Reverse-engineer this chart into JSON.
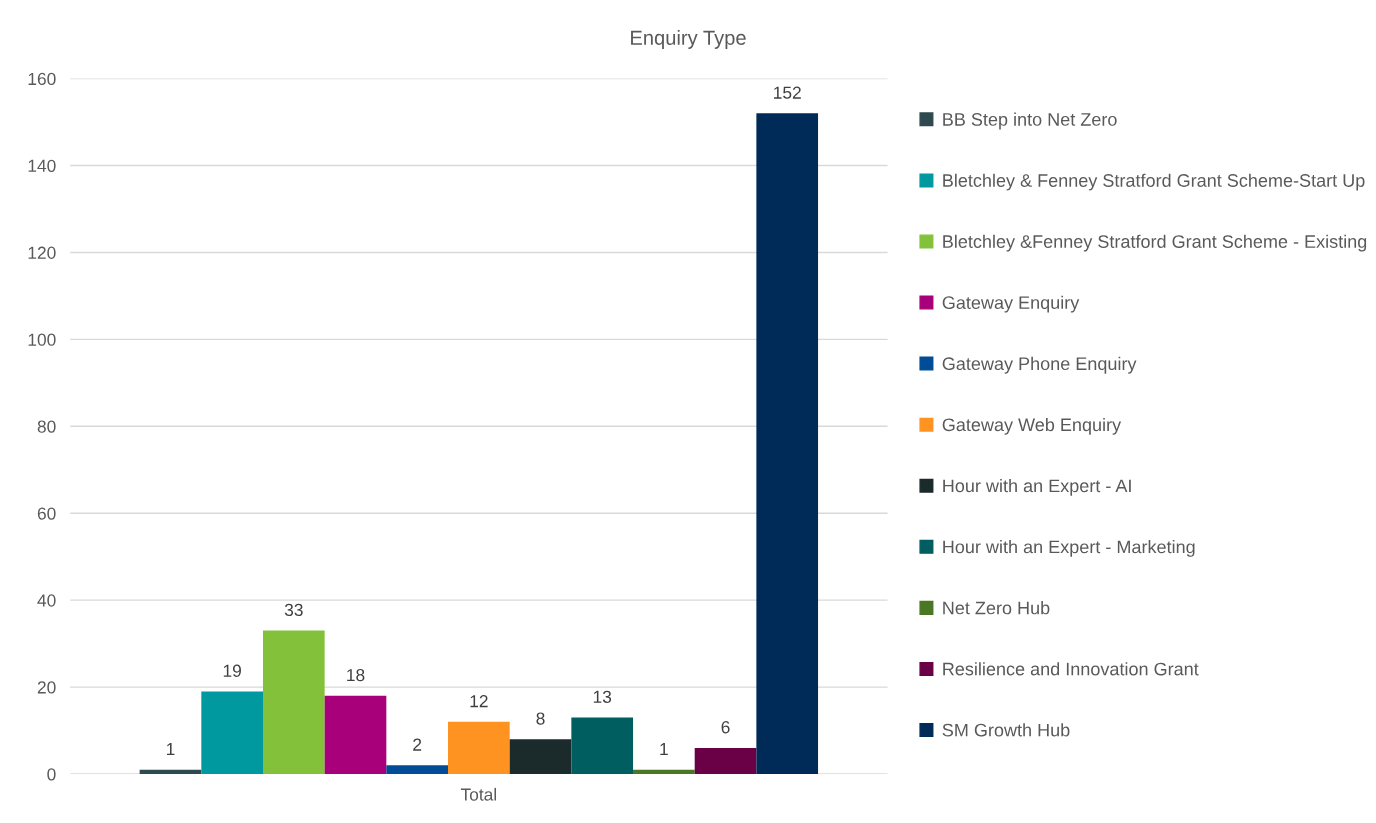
{
  "chart_data": {
    "type": "bar",
    "title": "Enquiry Type",
    "categories": [
      "Total"
    ],
    "series": [
      {
        "name": "BB Step into Net Zero",
        "color": "#2f4a4f",
        "values": [
          1
        ]
      },
      {
        "name": "Bletchley & Fenney Stratford Grant Scheme-Start Up",
        "color": "#0099a0",
        "values": [
          19
        ]
      },
      {
        "name": "Bletchley &Fenney Stratford Grant Scheme - Existing",
        "color": "#84c13b",
        "values": [
          33
        ]
      },
      {
        "name": "Gateway Enquiry",
        "color": "#a8007a",
        "values": [
          18
        ]
      },
      {
        "name": "Gateway Phone Enquiry",
        "color": "#004c97",
        "values": [
          2
        ]
      },
      {
        "name": "Gateway Web Enquiry",
        "color": "#ff9321",
        "values": [
          12
        ]
      },
      {
        "name": "Hour with an Expert - AI",
        "color": "#1b2a2b",
        "values": [
          8
        ]
      },
      {
        "name": "Hour with an Expert - Marketing",
        "color": "#005e60",
        "values": [
          13
        ]
      },
      {
        "name": "Net Zero Hub",
        "color": "#4a7723",
        "values": [
          1
        ]
      },
      {
        "name": "Resilience and Innovation Grant",
        "color": "#6a0045",
        "values": [
          6
        ]
      },
      {
        "name": "SM Growth Hub",
        "color": "#002a57",
        "values": [
          152
        ]
      }
    ],
    "ylim": [
      0,
      160
    ],
    "yticks": [
      0,
      20,
      40,
      60,
      80,
      100,
      120,
      140,
      160
    ],
    "grid": "y",
    "legend": "right",
    "data_labels": true
  }
}
